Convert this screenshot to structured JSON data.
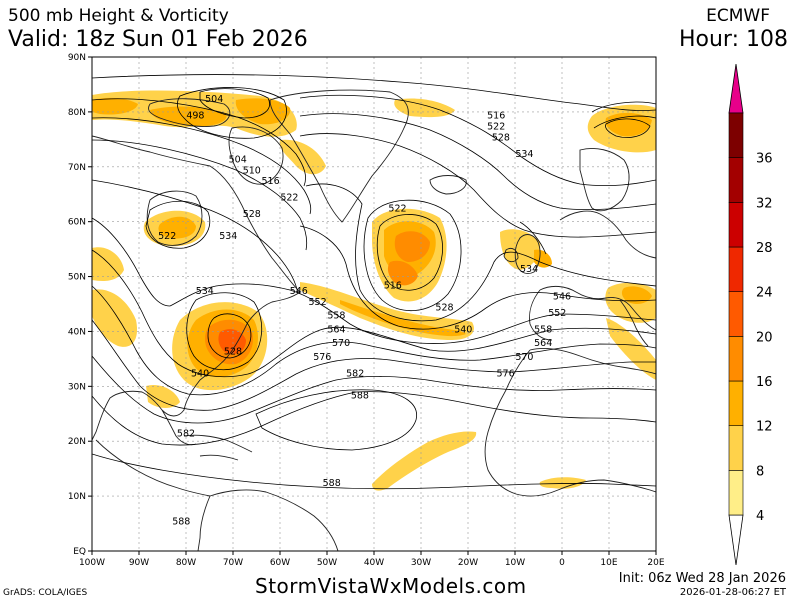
{
  "header": {
    "title": "500 mb Height & Vorticity",
    "model": "ECMWF",
    "valid": "Valid: 18z Sun 01 Feb 2026",
    "hour": "Hour: 108"
  },
  "footer": {
    "credit": "GrADS: COLA/IGES",
    "site": "StormVistaWxModels.com",
    "init": "Init: 06z Wed 28 Jan 2026",
    "created": "2026-01-28-06:27 ET"
  },
  "map": {
    "lon_ticks": [
      "100W",
      "90W",
      "80W",
      "70W",
      "60W",
      "50W",
      "40W",
      "30W",
      "20W",
      "10W",
      "0",
      "10E",
      "20E"
    ],
    "lat_ticks": [
      "EQ",
      "10N",
      "20N",
      "30N",
      "40N",
      "50N",
      "60N",
      "70N",
      "80N",
      "90N"
    ],
    "contour_labels": [
      {
        "text": "504",
        "lon": -74,
        "lat": 82
      },
      {
        "text": "498",
        "lon": -78,
        "lat": 79
      },
      {
        "text": "504",
        "lon": -69,
        "lat": 71
      },
      {
        "text": "510",
        "lon": -66,
        "lat": 69
      },
      {
        "text": "516",
        "lon": -62,
        "lat": 67
      },
      {
        "text": "522",
        "lon": -58,
        "lat": 64
      },
      {
        "text": "528",
        "lon": -66,
        "lat": 61
      },
      {
        "text": "534",
        "lon": -71,
        "lat": 57
      },
      {
        "text": "522",
        "lon": -84,
        "lat": 57
      },
      {
        "text": "522",
        "lon": -35,
        "lat": 62
      },
      {
        "text": "516",
        "lon": -36,
        "lat": 48
      },
      {
        "text": "528",
        "lon": -25,
        "lat": 44
      },
      {
        "text": "534",
        "lon": -76,
        "lat": 47
      },
      {
        "text": "546",
        "lon": -56,
        "lat": 47
      },
      {
        "text": "552",
        "lon": -52,
        "lat": 45
      },
      {
        "text": "558",
        "lon": -48,
        "lat": 42.5
      },
      {
        "text": "564",
        "lon": -48,
        "lat": 40
      },
      {
        "text": "570",
        "lon": -47,
        "lat": 37.5
      },
      {
        "text": "576",
        "lon": -51,
        "lat": 35
      },
      {
        "text": "582",
        "lon": -44,
        "lat": 32
      },
      {
        "text": "588",
        "lon": -43,
        "lat": 28
      },
      {
        "text": "528",
        "lon": -70,
        "lat": 36
      },
      {
        "text": "540",
        "lon": -77,
        "lat": 32
      },
      {
        "text": "540",
        "lon": -21,
        "lat": 40
      },
      {
        "text": "516",
        "lon": -14,
        "lat": 79
      },
      {
        "text": "522",
        "lon": -14,
        "lat": 77
      },
      {
        "text": "528",
        "lon": -13,
        "lat": 75
      },
      {
        "text": "534",
        "lon": -8,
        "lat": 72
      },
      {
        "text": "534",
        "lon": -7,
        "lat": 51
      },
      {
        "text": "546",
        "lon": 0,
        "lat": 46
      },
      {
        "text": "552",
        "lon": -1,
        "lat": 43
      },
      {
        "text": "558",
        "lon": -4,
        "lat": 40
      },
      {
        "text": "564",
        "lon": -4,
        "lat": 37.5
      },
      {
        "text": "570",
        "lon": -8,
        "lat": 35
      },
      {
        "text": "576",
        "lon": -12,
        "lat": 32
      },
      {
        "text": "582",
        "lon": -80,
        "lat": 21
      },
      {
        "text": "588",
        "lon": -49,
        "lat": 12
      },
      {
        "text": "588",
        "lon": -81,
        "lat": 5
      }
    ]
  },
  "colorbar": {
    "labels": [
      "4",
      "8",
      "12",
      "16",
      "20",
      "24",
      "28",
      "32",
      "36"
    ],
    "colors": [
      "#ffee88",
      "#ffd24a",
      "#ffb000",
      "#ff8c00",
      "#ff5a00",
      "#ef2800",
      "#cc0000",
      "#a30000",
      "#7d0000"
    ],
    "arrow_top_color": "#e8008a"
  }
}
